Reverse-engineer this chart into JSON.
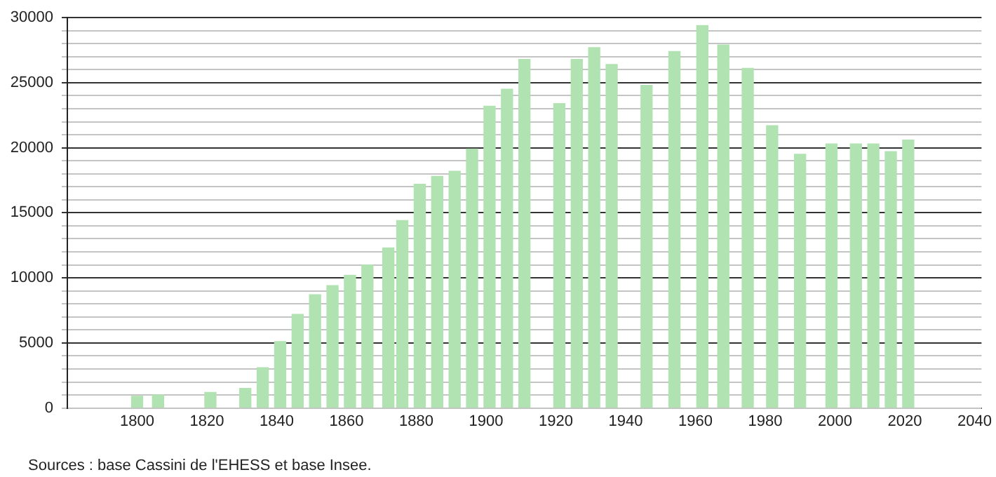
{
  "chart_data": {
    "type": "bar",
    "x": [
      1800,
      1806,
      1821,
      1831,
      1836,
      1841,
      1846,
      1851,
      1856,
      1861,
      1866,
      1872,
      1876,
      1881,
      1886,
      1891,
      1896,
      1901,
      1906,
      1911,
      1921,
      1926,
      1931,
      1936,
      1946,
      1954,
      1962,
      1968,
      1975,
      1982,
      1990,
      1999,
      2006,
      2011,
      2016,
      2021
    ],
    "values": [
      900,
      1000,
      1200,
      1500,
      3100,
      5100,
      7200,
      8700,
      9400,
      10200,
      11000,
      12300,
      14400,
      17200,
      17800,
      18200,
      19900,
      23200,
      24500,
      26800,
      23400,
      26800,
      27700,
      26400,
      24800,
      27400,
      29400,
      27900,
      26100,
      21700,
      19500,
      20300,
      20300,
      20300,
      19700,
      20600
    ],
    "color": "#b1e2b1",
    "xlim": [
      1780,
      2042
    ],
    "xticks": [
      1800,
      1820,
      1840,
      1860,
      1880,
      1900,
      1920,
      1940,
      1960,
      1980,
      2000,
      2020,
      2040
    ],
    "ylim": [
      0,
      30000
    ],
    "yticks": [
      0,
      {
        "value": 1000,
        "label": null
      },
      {
        "value": 2000,
        "label": null
      },
      {
        "value": 3000,
        "label": null
      },
      {
        "value": 4000,
        "label": null
      },
      5000,
      {
        "value": 6000,
        "label": null
      },
      {
        "value": 7000,
        "label": null
      },
      {
        "value": 8000,
        "label": null
      },
      {
        "value": 9000,
        "label": null
      },
      10000,
      {
        "value": 11000,
        "label": null
      },
      {
        "value": 12000,
        "label": null
      },
      {
        "value": 13000,
        "label": null
      },
      {
        "value": 14000,
        "label": null
      },
      15000,
      {
        "value": 16000,
        "label": null
      },
      {
        "value": 17000,
        "label": null
      },
      {
        "value": 18000,
        "label": null
      },
      {
        "value": 19000,
        "label": null
      },
      20000,
      {
        "value": 21000,
        "label": null
      },
      {
        "value": 22000,
        "label": null
      },
      {
        "value": 23000,
        "label": null
      },
      {
        "value": 24000,
        "label": null
      },
      25000,
      {
        "value": 26000,
        "label": null
      },
      {
        "value": 27000,
        "label": null
      },
      {
        "value": 28000,
        "label": null
      },
      {
        "value": 29000,
        "label": null
      },
      30000
    ],
    "grid": "y",
    "annotations": [
      "Sources : base Cassini de l'EHESS et base Insee."
    ]
  }
}
